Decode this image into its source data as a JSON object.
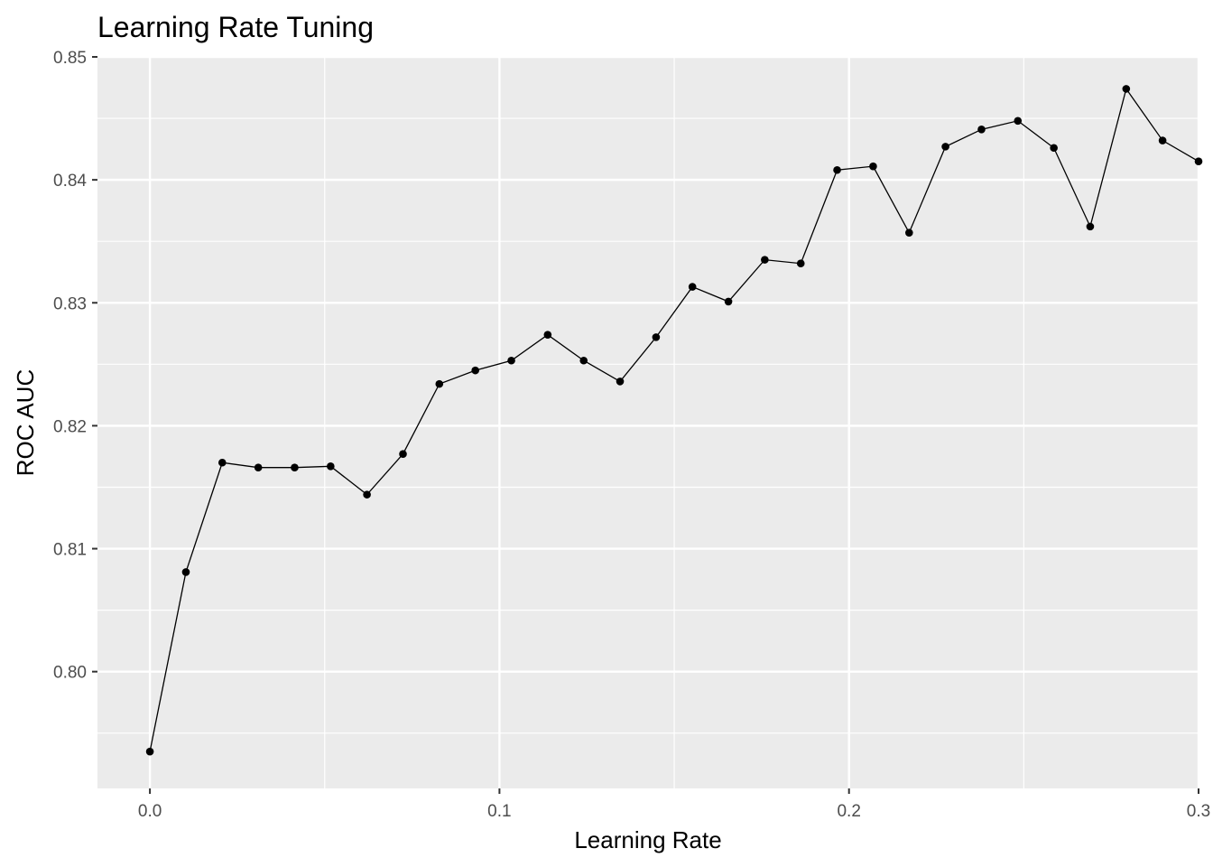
{
  "chart_data": {
    "type": "line",
    "title": "Learning Rate Tuning",
    "xlabel": "Learning Rate",
    "ylabel": "ROC AUC",
    "xlim": [
      -0.015,
      0.3
    ],
    "ylim": [
      0.7905,
      0.85
    ],
    "x_ticks": [
      0.0,
      0.1,
      0.2,
      0.3
    ],
    "x_tick_labels": [
      "0.0",
      "0.1",
      "0.2",
      "0.3"
    ],
    "y_ticks": [
      0.8,
      0.81,
      0.82,
      0.83,
      0.84,
      0.85
    ],
    "y_tick_labels": [
      "0.80",
      "0.81",
      "0.82",
      "0.83",
      "0.84",
      "0.85"
    ],
    "grid": true,
    "panel_background": "#ebebeb",
    "grid_color": "#ffffff",
    "series_color": "#000000",
    "series": [
      {
        "x": [
          0.0,
          0.0103,
          0.0207,
          0.031,
          0.0414,
          0.0517,
          0.0621,
          0.0724,
          0.0828,
          0.0931,
          0.1034,
          0.1138,
          0.1241,
          0.1345,
          0.1448,
          0.1552,
          0.1655,
          0.1759,
          0.1862,
          0.1966,
          0.2069,
          0.2172,
          0.2276,
          0.2379,
          0.2483,
          0.2586,
          0.269,
          0.2793,
          0.2897,
          0.3
        ],
        "y": [
          0.7935,
          0.8081,
          0.817,
          0.8166,
          0.8166,
          0.8167,
          0.8144,
          0.8177,
          0.8234,
          0.8245,
          0.8253,
          0.8274,
          0.8253,
          0.8236,
          0.8272,
          0.8313,
          0.8301,
          0.8335,
          0.8332,
          0.8408,
          0.8411,
          0.8357,
          0.8427,
          0.8441,
          0.8448,
          0.8426,
          0.8362,
          0.8474,
          0.8432,
          0.8415
        ]
      }
    ]
  }
}
